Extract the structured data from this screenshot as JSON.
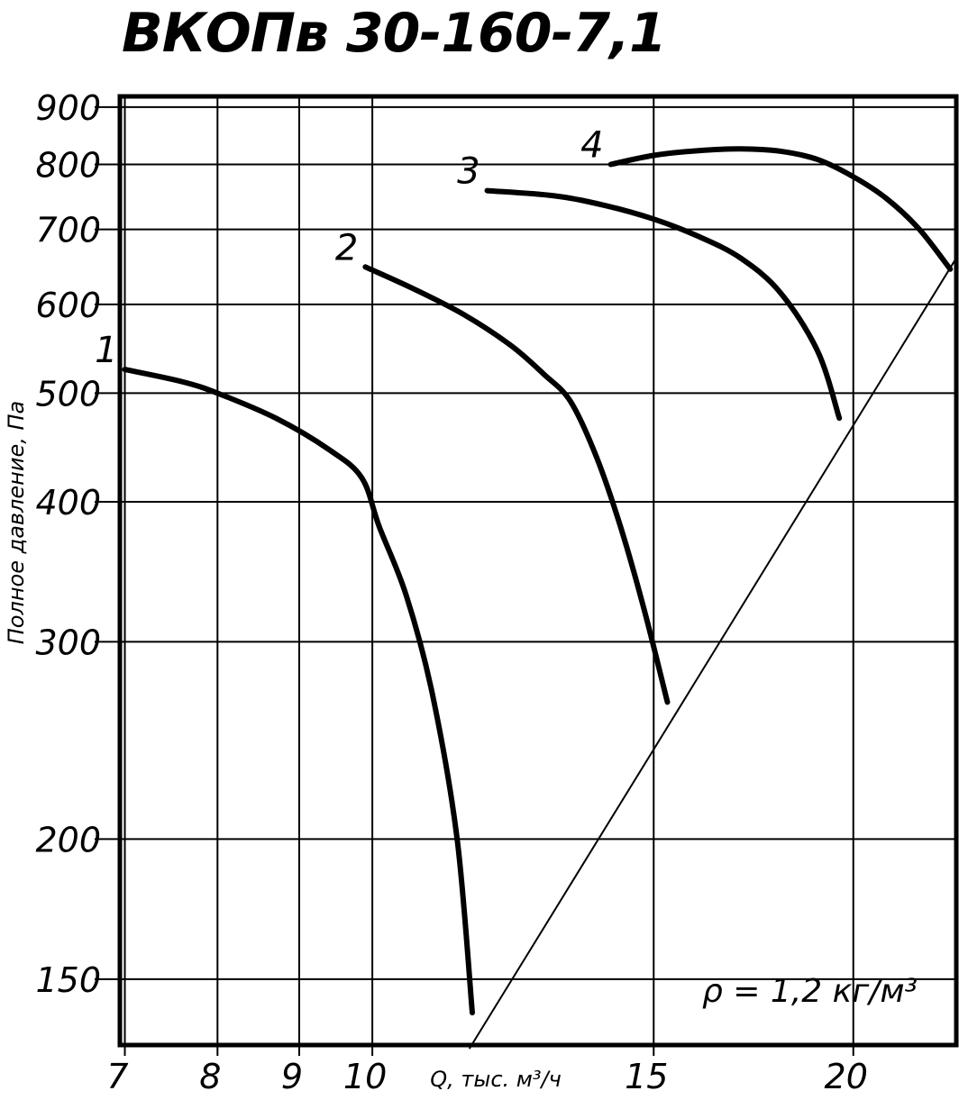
{
  "chart_data": {
    "type": "line",
    "title": "ВКОПв 30-160-7,1",
    "xlabel": "Q, тыс. м³/ч",
    "ylabel": "Полное давление, Па",
    "x_scale": "log",
    "y_scale": "log",
    "xlim": [
      6.95,
      23.2
    ],
    "ylim": [
      131,
      920
    ],
    "x_ticks": [
      7,
      8,
      9,
      10,
      15,
      20
    ],
    "y_ticks": [
      150,
      200,
      300,
      400,
      500,
      600,
      700,
      800,
      900
    ],
    "x_tick_labels": [
      "7",
      "8",
      "9",
      "10",
      "15",
      "20"
    ],
    "y_tick_labels": [
      "150",
      "200",
      "300",
      "400",
      "500",
      "600",
      "700",
      "800",
      "900"
    ],
    "grid": true,
    "annotation": "ρ = 1,2 кг/м³",
    "series": [
      {
        "name": "1",
        "x": [
          7.0,
          7.6,
          8.0,
          8.7,
          9.4,
          9.85,
          10.1,
          10.5,
          10.9,
          11.3,
          11.55
        ],
        "y": [
          525,
          512,
          500,
          475,
          445,
          420,
          380,
          330,
          270,
          200,
          140
        ]
      },
      {
        "name": "2",
        "x": [
          9.9,
          10.6,
          11.4,
          12.2,
          12.8,
          13.3,
          13.8,
          14.3,
          14.8,
          15.3
        ],
        "y": [
          648,
          620,
          588,
          552,
          520,
          492,
          440,
          380,
          320,
          265
        ]
      },
      {
        "name": "3",
        "x": [
          11.8,
          13.0,
          14.0,
          15.0,
          16.0,
          17.0,
          18.0,
          19.0,
          19.6
        ],
        "y": [
          758,
          750,
          735,
          715,
          690,
          660,
          615,
          545,
          475
        ]
      },
      {
        "name": "4",
        "x": [
          14.1,
          15.0,
          16.0,
          17.0,
          18.0,
          19.0,
          20.0,
          21.0,
          22.0,
          23.0
        ],
        "y": [
          800,
          815,
          823,
          826,
          822,
          808,
          780,
          745,
          700,
          645
        ]
      }
    ],
    "system_line": {
      "x": [
        11.5,
        23.2
      ],
      "y": [
        130,
        660
      ]
    }
  }
}
